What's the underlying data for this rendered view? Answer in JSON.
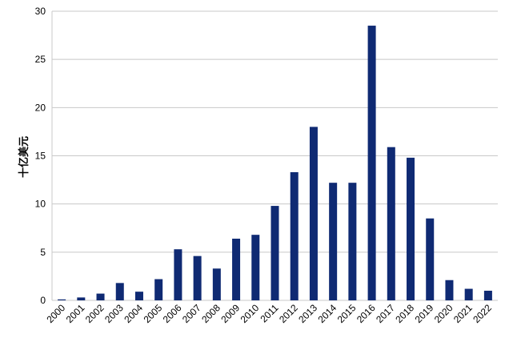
{
  "chart_data": {
    "type": "bar",
    "y_label": "十亿美元",
    "categories": [
      "2000",
      "2001",
      "2002",
      "2003",
      "2004",
      "2005",
      "2006",
      "2007",
      "2008",
      "2009",
      "2010",
      "2011",
      "2012",
      "2013",
      "2014",
      "2015",
      "2016",
      "2017",
      "2018",
      "2019",
      "2020",
      "2021",
      "2022"
    ],
    "values": [
      0.1,
      0.3,
      0.7,
      1.8,
      0.9,
      2.2,
      5.3,
      4.6,
      3.3,
      6.4,
      6.8,
      9.8,
      13.3,
      18.0,
      12.2,
      12.2,
      28.5,
      15.9,
      14.8,
      8.5,
      2.1,
      1.2,
      1.0
    ],
    "color": "#0f2a73",
    "ylim": [
      0,
      30
    ],
    "yticks": [
      0,
      5,
      10,
      15,
      20,
      25,
      30
    ],
    "grid": true
  }
}
